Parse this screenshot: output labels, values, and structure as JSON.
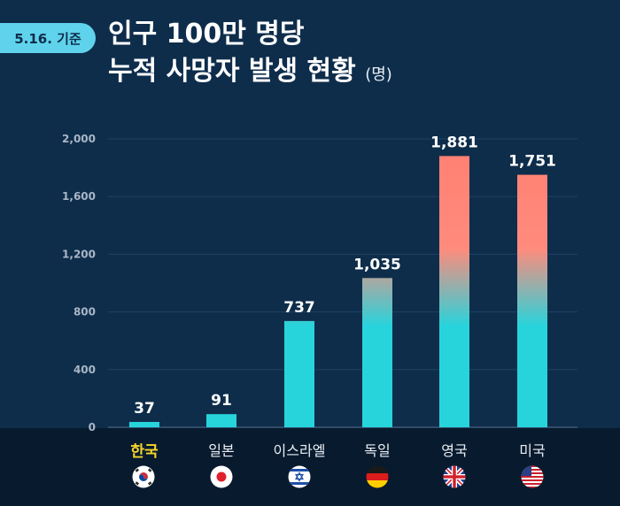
{
  "header": {
    "date_badge": "5.16. 기준",
    "title_line_1": "인구 100만 명당",
    "title_line_2": "누적 사망자 발생 현황",
    "unit": "(명)"
  },
  "chart_data": {
    "type": "bar",
    "categories": [
      "한국",
      "일본",
      "이스라엘",
      "독일",
      "영국",
      "미국"
    ],
    "values": [
      37,
      91,
      737,
      1035,
      1881,
      1751
    ],
    "value_labels": [
      "37",
      "91",
      "737",
      "1,035",
      "1,881",
      "1,751"
    ],
    "highlight_category": "한국",
    "ylim": [
      0,
      2000
    ],
    "yticks": [
      0,
      400,
      800,
      1200,
      1600,
      2000
    ],
    "ytick_labels": [
      "0",
      "400",
      "800",
      "1,200",
      "1,600",
      "2,000"
    ],
    "grid": true,
    "colors": {
      "bar_bottom": "#27d4dc",
      "bar_top": "#ff7f72",
      "highlight_label": "#f6d52c",
      "background": "#0e2d4b"
    }
  },
  "flags": [
    "korea-flag-icon",
    "japan-flag-icon",
    "israel-flag-icon",
    "germany-flag-icon",
    "uk-flag-icon",
    "usa-flag-icon"
  ]
}
